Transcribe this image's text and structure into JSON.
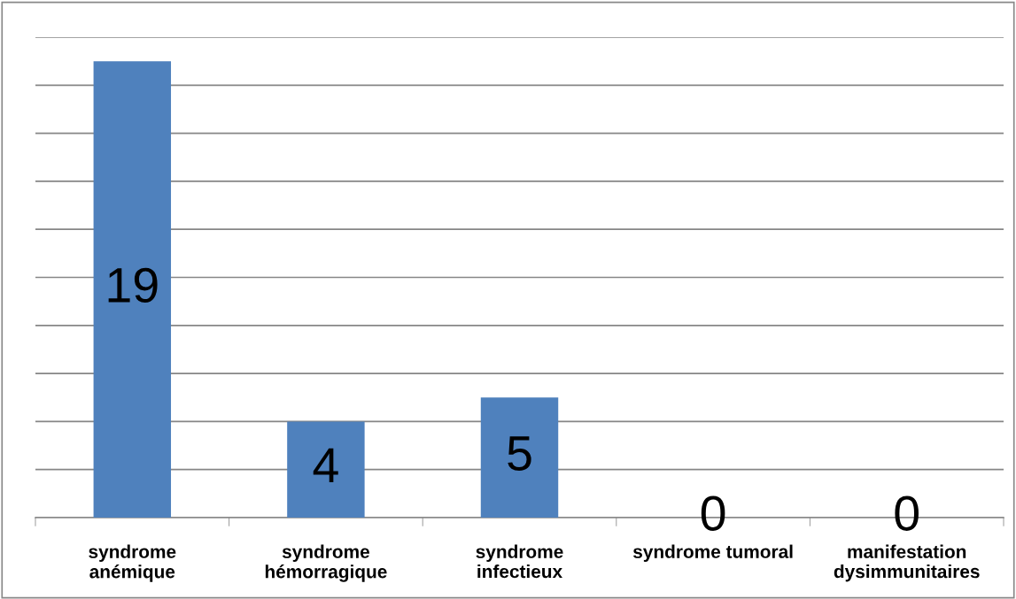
{
  "chart_data": {
    "type": "bar",
    "categories": [
      "syndrome\nanémique",
      "syndrome\nhémorragique",
      "syndrome\ninfectieux",
      "syndrome tumoral",
      "manifestation\ndysimmunitaires"
    ],
    "values": [
      19,
      4,
      5,
      0,
      0
    ],
    "color": "#4f81bd",
    "ylim": [
      0,
      20
    ],
    "yticks": [
      {
        "value": 0,
        "label": null
      },
      {
        "value": 2,
        "label": null
      },
      {
        "value": 4,
        "label": null
      },
      {
        "value": 6,
        "label": null
      },
      {
        "value": 8,
        "label": null
      },
      {
        "value": 10,
        "label": null
      },
      {
        "value": 12,
        "label": null
      },
      {
        "value": 14,
        "label": null
      },
      {
        "value": 16,
        "label": null
      },
      {
        "value": 18,
        "label": null
      },
      {
        "value": 20,
        "label": null
      }
    ],
    "grid": "y",
    "tick_labels": "x",
    "data_labels": true
  }
}
